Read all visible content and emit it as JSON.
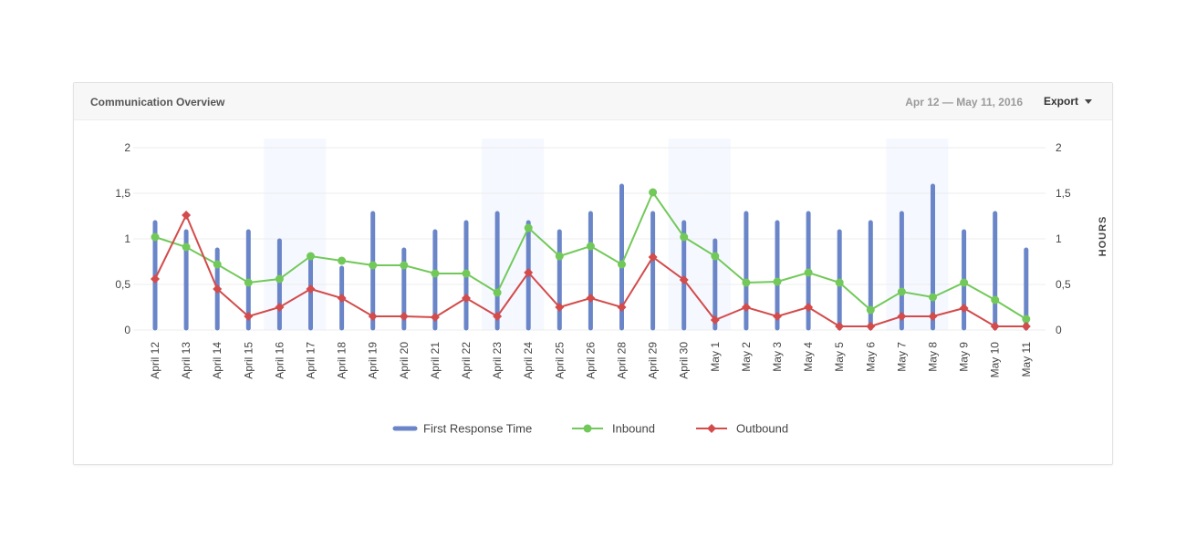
{
  "panel": {
    "title": "Communication Overview",
    "date_range": "Apr 12 — May 11, 2016",
    "export_label": "Export"
  },
  "colors": {
    "first_response": "#6a86c8",
    "inbound": "#72c95a",
    "outbound": "#d34b4b",
    "weekend_band": "#f6f8ff",
    "grid": "#ececec"
  },
  "chart_data": {
    "type": "bar",
    "categories": [
      "April 12",
      "April 13",
      "April 14",
      "April 15",
      "April 16",
      "April 17",
      "April 18",
      "April 19",
      "April 20",
      "April 21",
      "April 22",
      "April 23",
      "April 24",
      "April 25",
      "April 26",
      "April 28",
      "April 29",
      "April 30",
      "May 1",
      "May 2",
      "May 3",
      "May 4",
      "May 5",
      "May 6",
      "May 7",
      "May 8",
      "May 9",
      "May 10",
      "May 11"
    ],
    "series": [
      {
        "name": "First Response Time",
        "type": "bar",
        "values": [
          1.2,
          1.1,
          0.9,
          1.1,
          1.0,
          0.8,
          0.7,
          1.3,
          0.9,
          1.1,
          1.2,
          1.3,
          1.2,
          1.1,
          1.3,
          1.6,
          1.3,
          1.2,
          1.0,
          1.3,
          1.2,
          1.3,
          1.1,
          1.2,
          1.3,
          1.6,
          1.1,
          1.3,
          0.9
        ]
      },
      {
        "name": "Inbound",
        "type": "line",
        "values": [
          1.02,
          0.91,
          0.72,
          0.52,
          0.56,
          0.81,
          0.76,
          0.71,
          0.71,
          0.62,
          0.62,
          0.41,
          1.12,
          0.81,
          0.92,
          0.72,
          1.51,
          1.02,
          0.81,
          0.52,
          0.53,
          0.63,
          0.52,
          0.22,
          0.42,
          0.36,
          0.52,
          0.33,
          0.12
        ]
      },
      {
        "name": "Outbound",
        "type": "line",
        "values": [
          0.56,
          1.26,
          0.45,
          0.15,
          0.25,
          0.45,
          0.35,
          0.15,
          0.15,
          0.14,
          0.35,
          0.15,
          0.63,
          0.25,
          0.35,
          0.25,
          0.8,
          0.55,
          0.11,
          0.25,
          0.15,
          0.25,
          0.04,
          0.04,
          0.15,
          0.15,
          0.24,
          0.04,
          0.04
        ]
      }
    ],
    "y_ticks": [
      "0",
      "0,5",
      "1",
      "1,5",
      "2"
    ],
    "y2_ticks": [
      "0",
      "0,5",
      "1",
      "1,5",
      "2"
    ],
    "ylim": [
      0,
      2
    ],
    "y2label": "HOURS",
    "highlight_categories": [
      "April 16",
      "April 17",
      "April 23",
      "April 24",
      "April 30",
      "May 1",
      "May 7",
      "May 8"
    ],
    "legend_position": "bottom",
    "grid": true
  }
}
